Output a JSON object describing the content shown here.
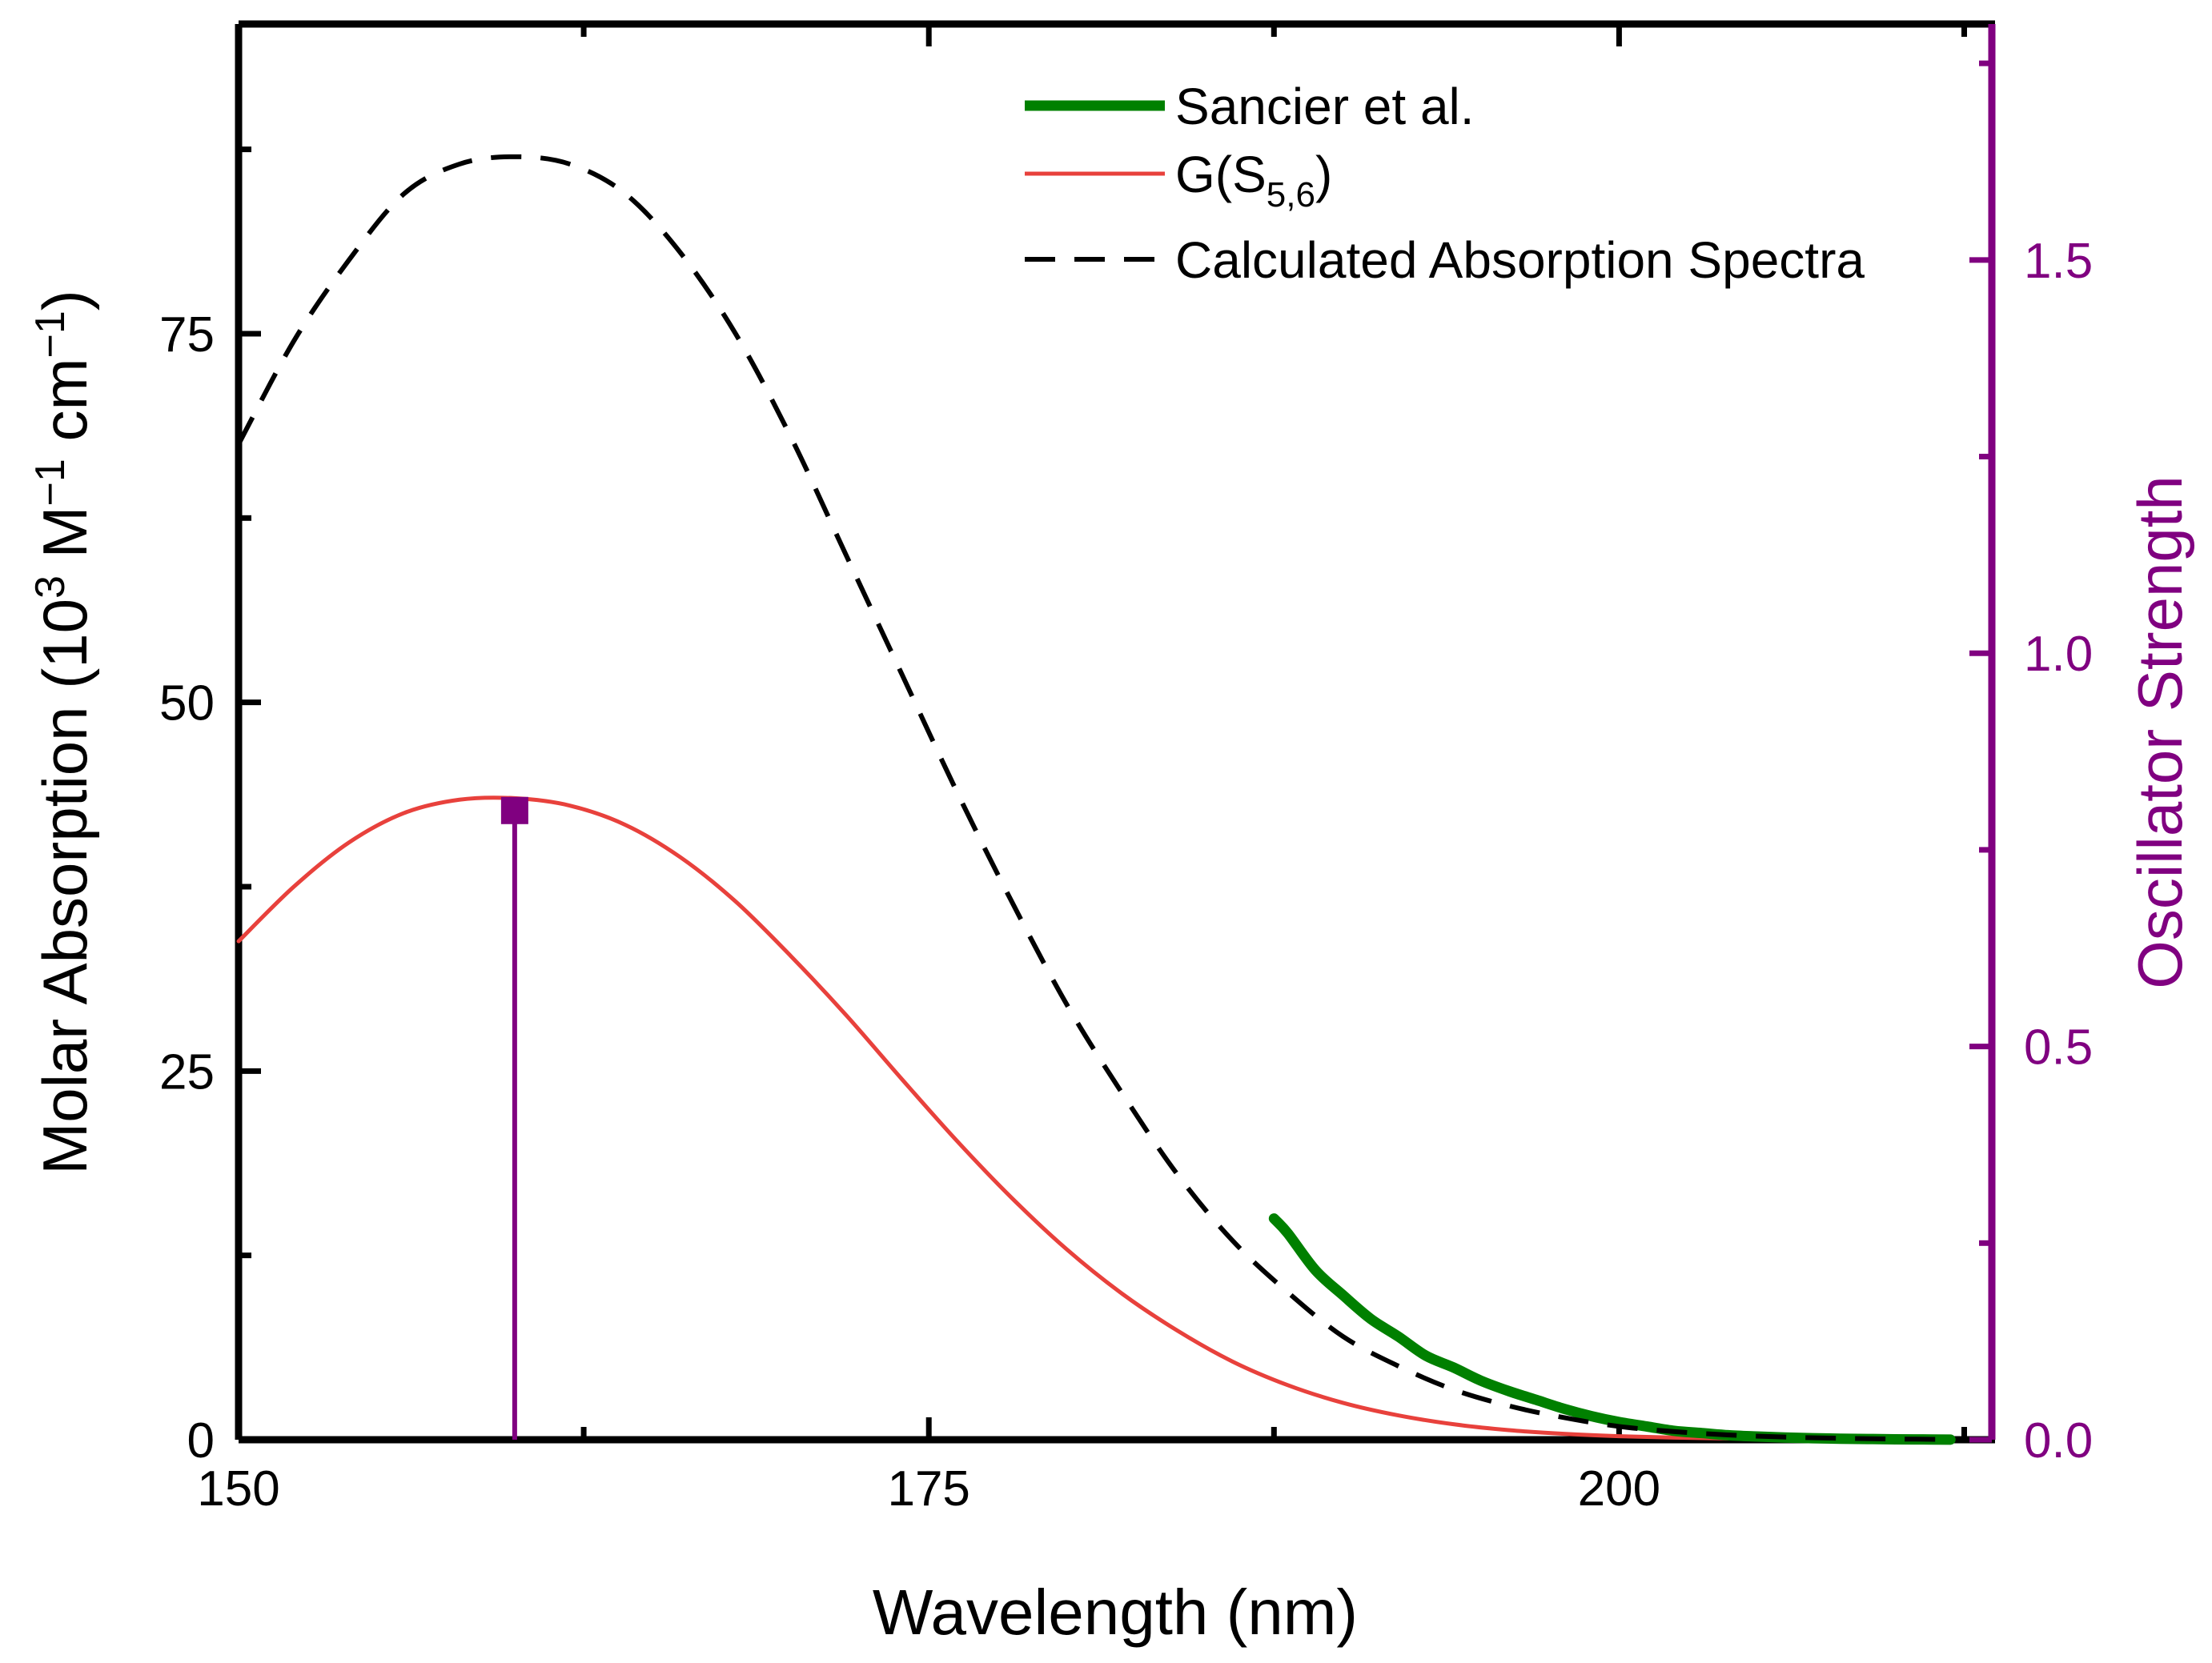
{
  "chart_data": {
    "type": "line",
    "xlabel": "Wavelength (nm)",
    "ylabel": {
      "prefix": "Molar Absorption (10",
      "exp1": "3",
      "mid": " M",
      "exp2": "−1",
      "mid2": " cm",
      "exp3": "−1",
      "suffix": ")"
    },
    "y2label": "Oscillator Strength",
    "xlim": [
      150,
      213.5
    ],
    "ylim": [
      0,
      96
    ],
    "y2lim": [
      0,
      1.8
    ],
    "xticks": [
      150,
      175,
      200
    ],
    "xtick_labels": [
      "150",
      "175",
      "200"
    ],
    "yticks": [
      0,
      25,
      50,
      75
    ],
    "ytick_labels": [
      "0",
      "25",
      "50",
      "75"
    ],
    "y2ticks": [
      0,
      0.5,
      1.0,
      1.5
    ],
    "y2tick_labels": [
      "0.0",
      "0.5",
      "1.0",
      "1.5"
    ],
    "legend": {
      "position": "top-right",
      "entries": [
        {
          "label": "Sancier et al.",
          "style": "thick-solid",
          "color": "#008000"
        },
        {
          "label": "G(S",
          "sub": "5,6",
          "suffix": ")",
          "style": "solid",
          "color": "#e8413c"
        },
        {
          "label": "Calculated Absorption Spectra",
          "style": "dashed",
          "color": "#000000"
        }
      ]
    },
    "series": [
      {
        "name": "Calculated Absorption Spectra",
        "axis": "left",
        "color": "#000000",
        "style": "dashed",
        "x": [
          150,
          152,
          154,
          156,
          158,
          160,
          162,
          164,
          166,
          168,
          170,
          172,
          174,
          176,
          178,
          180,
          182,
          184,
          186,
          188,
          190,
          192,
          194,
          196,
          198,
          200,
          202,
          204,
          206,
          208,
          210,
          212
        ],
        "y": [
          67.5,
          74.5,
          80,
          84.5,
          86.5,
          87,
          86.5,
          84.5,
          80.5,
          75,
          68,
          60,
          52,
          44,
          36.5,
          29.5,
          23.5,
          18,
          13.5,
          10,
          7,
          5,
          3.4,
          2.3,
          1.5,
          0.9,
          0.55,
          0.32,
          0.18,
          0.1,
          0.05,
          0.02
        ]
      },
      {
        "name": "G(S5,6)",
        "axis": "left",
        "color": "#e8413c",
        "style": "solid",
        "x": [
          150,
          152,
          154,
          156,
          158,
          160,
          162,
          164,
          166,
          168,
          170,
          172,
          174,
          176,
          178,
          180,
          182,
          184,
          186,
          188,
          190,
          192,
          194,
          196,
          198,
          200,
          202,
          204,
          206,
          208,
          210,
          212
        ],
        "y": [
          33.8,
          37.5,
          40.5,
          42.5,
          43.4,
          43.5,
          43,
          41.7,
          39.5,
          36.5,
          32.8,
          28.8,
          24.5,
          20.3,
          16.4,
          12.9,
          9.9,
          7.4,
          5.3,
          3.7,
          2.5,
          1.65,
          1.05,
          0.65,
          0.4,
          0.24,
          0.14,
          0.08,
          0.04,
          0.02,
          0.01,
          0.005
        ]
      },
      {
        "name": "Sancier et al.",
        "axis": "left",
        "color": "#008000",
        "style": "thick-solid",
        "x": [
          187.5,
          188,
          189,
          190,
          191,
          192,
          193,
          194,
          195,
          196,
          197,
          198,
          199,
          200,
          201,
          202,
          203,
          204,
          205,
          206,
          207,
          208,
          209,
          210,
          211,
          212
        ],
        "y": [
          15,
          14,
          11.5,
          9.8,
          8.2,
          7,
          5.7,
          4.9,
          4,
          3.3,
          2.7,
          2.1,
          1.6,
          1.2,
          0.9,
          0.6,
          0.45,
          0.3,
          0.22,
          0.15,
          0.1,
          0.07,
          0.05,
          0.03,
          0.02,
          0.01
        ]
      },
      {
        "name": "Oscillator Strength stick",
        "axis": "right",
        "color": "#800080",
        "style": "stick",
        "x": [
          160
        ],
        "y": [
          0.8
        ]
      }
    ]
  }
}
